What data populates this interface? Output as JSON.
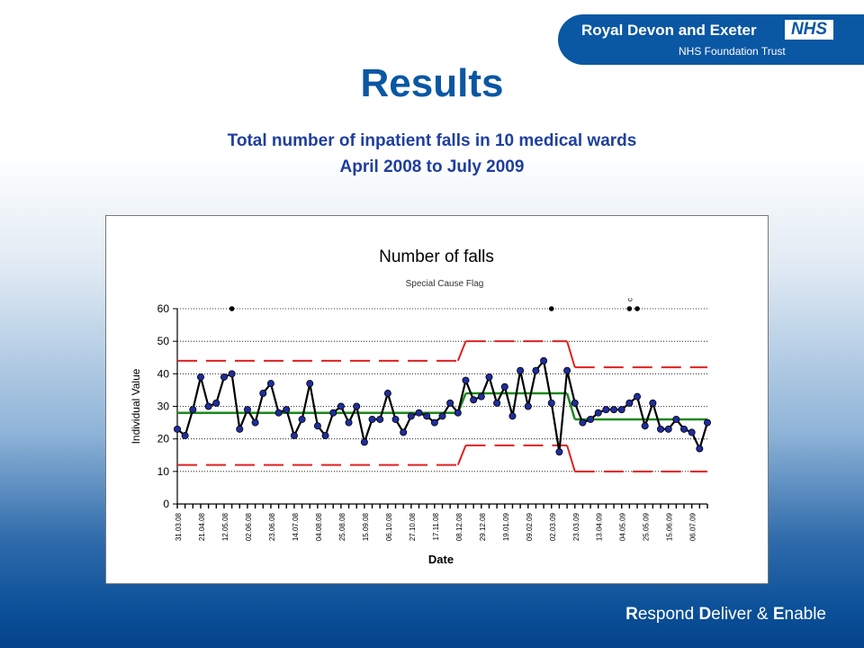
{
  "logo": {
    "line1": "Royal Devon and Exeter",
    "nhs": "NHS",
    "line2": "NHS Foundation Trust"
  },
  "slide": {
    "title": "Results",
    "subtitle_line1": "Total number of inpatient falls in 10 medical wards",
    "subtitle_line2": "April 2008 to July 2009"
  },
  "footer": {
    "parts": [
      {
        "initial": "R",
        "rest": "espond "
      },
      {
        "initial": "D",
        "rest": "eliver & "
      },
      {
        "initial": "E",
        "rest": "nable"
      }
    ]
  },
  "chart_data": {
    "type": "line",
    "title": "Number of falls",
    "subtitle": "Special Cause Flag",
    "xlabel": "Date",
    "ylabel": "Individual Value",
    "ylim": [
      0,
      60
    ],
    "yticks": [
      0,
      10,
      20,
      30,
      40,
      50,
      60
    ],
    "grid": true,
    "x_tick_labels": [
      "31.03.08",
      "21.04.08",
      "12.05.08",
      "02.06.08",
      "23.06.08",
      "14.07.08",
      "04.08.08",
      "25.08.08",
      "15.09.08",
      "06.10.08",
      "27.10.08",
      "17.11.08",
      "08.12.08",
      "29.12.08",
      "19.01.09",
      "09.02.09",
      "02.03.09",
      "23.03.09",
      "13.04.09",
      "04.05.09",
      "25.05.09",
      "15.06.09",
      "06.07.09"
    ],
    "series": [
      {
        "values": [
          23,
          21,
          29,
          39,
          30,
          31,
          39,
          40,
          23,
          29,
          25,
          34,
          37,
          28,
          29,
          21,
          26,
          37,
          24,
          21,
          28,
          30,
          25,
          30,
          19,
          26,
          26,
          34,
          26,
          22,
          27,
          28,
          27,
          25,
          27,
          31,
          28,
          38,
          32,
          33,
          39,
          31,
          36,
          27,
          41,
          30,
          41,
          44,
          31,
          16,
          41,
          31,
          25,
          26,
          28,
          29,
          29,
          29,
          31,
          33,
          24,
          31,
          23,
          23,
          26,
          23,
          22,
          17,
          25
        ]
      }
    ],
    "phases": [
      {
        "start": 0,
        "end": 36,
        "mean": 28,
        "ucl": 44,
        "lcl": 12
      },
      {
        "start": 37,
        "end": 50,
        "mean": 34,
        "ucl": 50,
        "lcl": 18
      },
      {
        "start": 51,
        "end": 68,
        "mean": 26,
        "ucl": 42,
        "lcl": 10
      }
    ],
    "special_cause_flags": [
      7,
      48,
      58,
      59
    ],
    "flag_label": "c",
    "colors": {
      "line": "#000000",
      "marker": "#1f2d9e",
      "mean": "#1a8a1a",
      "limits": "#e02020",
      "grid": "#000000"
    }
  }
}
